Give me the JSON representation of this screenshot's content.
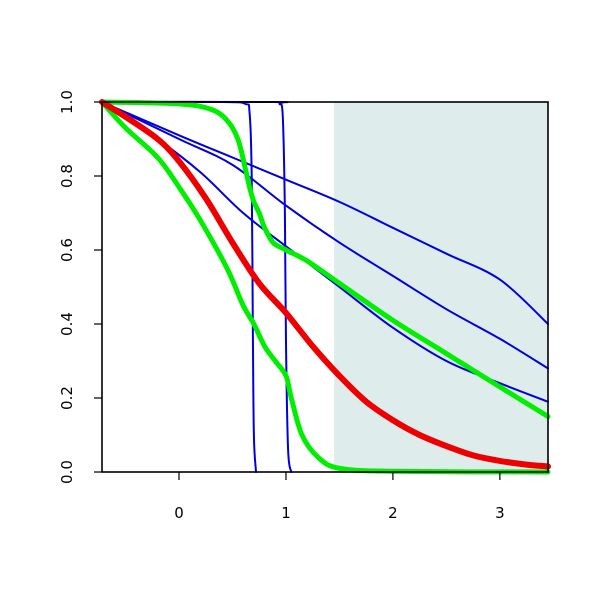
{
  "chart_data": {
    "type": "line",
    "title": "",
    "xlabel": "",
    "ylabel": "",
    "xlim": [
      -0.72,
      3.45
    ],
    "ylim": [
      0,
      1
    ],
    "x_ticks": [
      0,
      1,
      2,
      3
    ],
    "y_ticks": [
      0.0,
      0.2,
      0.4,
      0.6,
      0.8,
      1.0
    ],
    "x_tick_labels": [
      "0",
      "1",
      "2",
      "3"
    ],
    "y_tick_labels": [
      "0.0",
      "0.2",
      "0.4",
      "0.6",
      "0.8",
      "1.0"
    ],
    "grid": false,
    "shaded_region": {
      "x": [
        1.45,
        3.45
      ],
      "y": [
        0,
        1
      ],
      "color": "#deeceb"
    },
    "series": [
      {
        "color": "#0000dd",
        "width": 2,
        "points": [
          [
            -0.72,
            1.0
          ],
          [
            0.0,
            0.91
          ],
          [
            0.5,
            0.85
          ],
          [
            1.0,
            0.79
          ],
          [
            1.5,
            0.73
          ],
          [
            2.0,
            0.66
          ],
          [
            2.5,
            0.59
          ],
          [
            3.0,
            0.52
          ],
          [
            3.45,
            0.4
          ]
        ]
      },
      {
        "color": "#0000dd",
        "width": 2,
        "points": [
          [
            -0.72,
            1.0
          ],
          [
            0.0,
            0.9
          ],
          [
            0.5,
            0.83
          ],
          [
            1.0,
            0.72
          ],
          [
            1.5,
            0.62
          ],
          [
            2.0,
            0.53
          ],
          [
            2.5,
            0.44
          ],
          [
            3.0,
            0.36
          ],
          [
            3.45,
            0.28
          ]
        ]
      },
      {
        "color": "#0000dd",
        "width": 2,
        "points": [
          [
            -0.72,
            1.0
          ],
          [
            -0.2,
            0.9
          ],
          [
            0.2,
            0.81
          ],
          [
            0.6,
            0.7
          ],
          [
            1.0,
            0.61
          ],
          [
            1.5,
            0.5
          ],
          [
            2.0,
            0.39
          ],
          [
            2.5,
            0.3
          ],
          [
            3.0,
            0.24
          ],
          [
            3.45,
            0.19
          ]
        ]
      },
      {
        "color": "#0000dd",
        "width": 2,
        "points": [
          [
            -0.72,
            1.0
          ],
          [
            0.4,
            1.0
          ],
          [
            0.62,
            0.995
          ],
          [
            0.66,
            0.97
          ],
          [
            0.68,
            0.8
          ],
          [
            0.69,
            0.4
          ],
          [
            0.7,
            0.1
          ],
          [
            0.72,
            0.0
          ]
        ]
      },
      {
        "color": "#0000dd",
        "width": 2,
        "points": [
          [
            -0.72,
            1.0
          ],
          [
            0.88,
            1.0
          ],
          [
            0.94,
            0.995
          ],
          [
            0.97,
            0.96
          ],
          [
            0.99,
            0.7
          ],
          [
            1.0,
            0.35
          ],
          [
            1.02,
            0.06
          ],
          [
            1.05,
            0.0
          ]
        ]
      },
      {
        "color": "#00ee00",
        "width": 5,
        "points": [
          [
            -0.72,
            1.0
          ],
          [
            0.0,
            0.995
          ],
          [
            0.3,
            0.98
          ],
          [
            0.45,
            0.95
          ],
          [
            0.55,
            0.9
          ],
          [
            0.62,
            0.82
          ],
          [
            0.66,
            0.77
          ],
          [
            0.7,
            0.73
          ],
          [
            0.75,
            0.7
          ],
          [
            0.8,
            0.66
          ],
          [
            0.88,
            0.62
          ],
          [
            1.0,
            0.6
          ],
          [
            1.2,
            0.57
          ],
          [
            1.5,
            0.51
          ],
          [
            2.0,
            0.41
          ],
          [
            2.5,
            0.32
          ],
          [
            3.0,
            0.23
          ],
          [
            3.45,
            0.15
          ]
        ]
      },
      {
        "color": "#00ee00",
        "width": 5,
        "points": [
          [
            -0.72,
            1.0
          ],
          [
            -0.5,
            0.93
          ],
          [
            -0.2,
            0.85
          ],
          [
            0.0,
            0.77
          ],
          [
            0.2,
            0.68
          ],
          [
            0.45,
            0.55
          ],
          [
            0.6,
            0.45
          ],
          [
            0.7,
            0.4
          ],
          [
            0.8,
            0.34
          ],
          [
            0.9,
            0.3
          ],
          [
            1.0,
            0.26
          ],
          [
            1.05,
            0.2
          ],
          [
            1.15,
            0.1
          ],
          [
            1.3,
            0.04
          ],
          [
            1.5,
            0.01
          ],
          [
            2.0,
            0.002
          ],
          [
            3.45,
            0.0
          ]
        ]
      },
      {
        "color": "#ee0000",
        "width": 6,
        "points": [
          [
            -0.72,
            1.0
          ],
          [
            -0.5,
            0.96
          ],
          [
            -0.2,
            0.9
          ],
          [
            0.0,
            0.84
          ],
          [
            0.25,
            0.74
          ],
          [
            0.5,
            0.62
          ],
          [
            0.75,
            0.51
          ],
          [
            1.0,
            0.43
          ],
          [
            1.25,
            0.34
          ],
          [
            1.5,
            0.26
          ],
          [
            1.75,
            0.19
          ],
          [
            2.0,
            0.14
          ],
          [
            2.25,
            0.1
          ],
          [
            2.5,
            0.07
          ],
          [
            2.75,
            0.045
          ],
          [
            3.0,
            0.03
          ],
          [
            3.25,
            0.02
          ],
          [
            3.45,
            0.015
          ]
        ]
      }
    ]
  }
}
